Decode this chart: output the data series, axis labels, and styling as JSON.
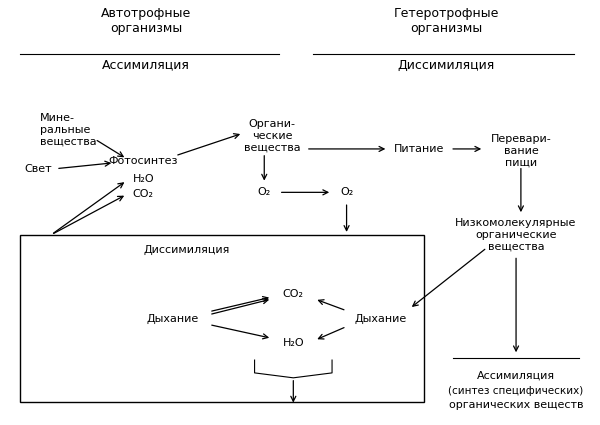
{
  "bg_color": "#ffffff",
  "text_color": "#000000",
  "fig_width": 6.0,
  "fig_height": 4.25,
  "dpi": 100,
  "header_left_title": "Автотрофные\nорганизмы",
  "header_left_sub": "Ассимиляция",
  "header_right_title": "Гетеротрофные\nорганизмы",
  "header_right_sub": "Диссимиляция"
}
